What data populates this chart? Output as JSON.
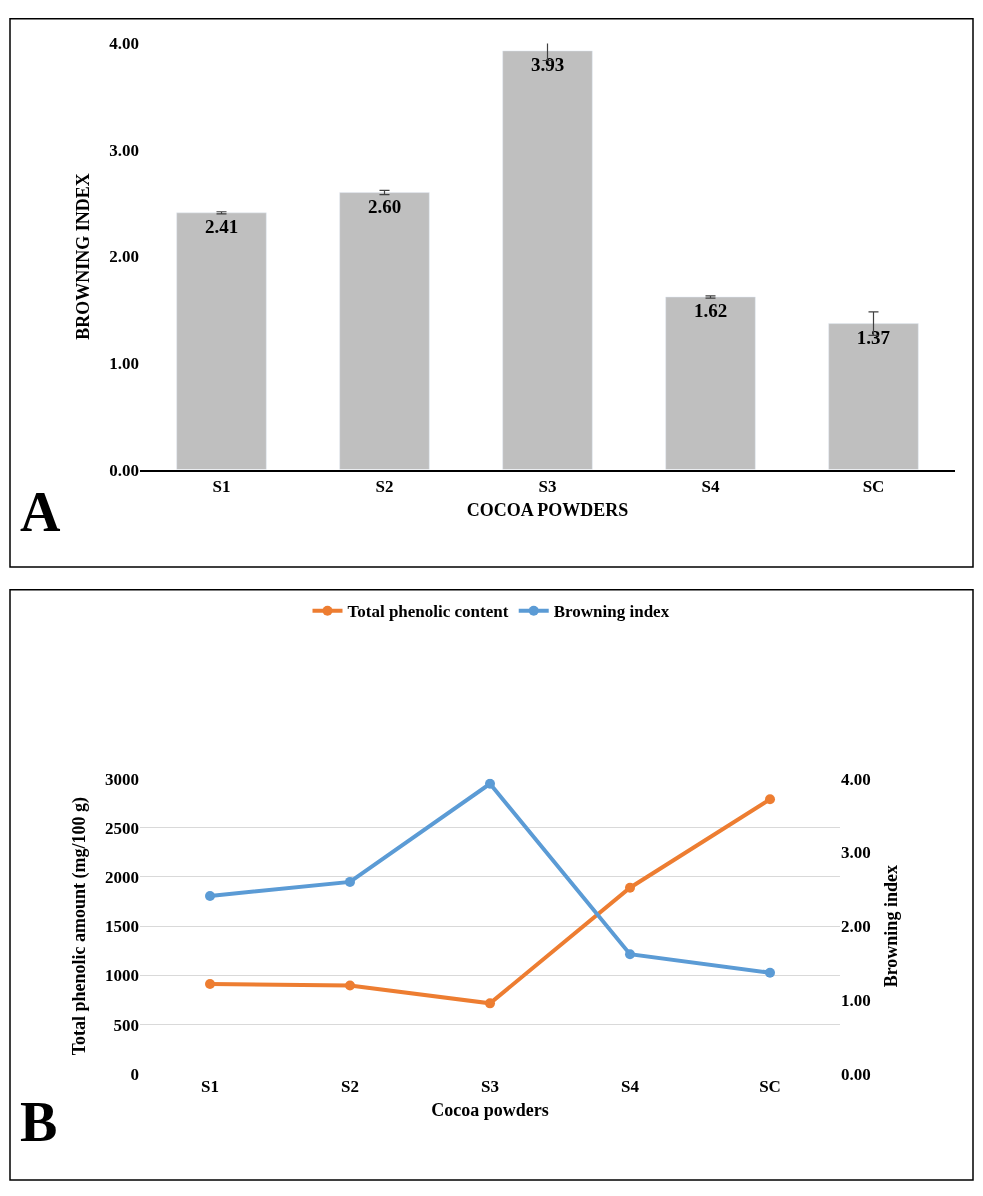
{
  "chart_data": [
    {
      "type": "bar",
      "categories": [
        "S1",
        "S2",
        "S3",
        "S4",
        "SC"
      ],
      "values": [
        2.41,
        2.6,
        3.93,
        1.62,
        1.37
      ],
      "errors": [
        0.01,
        0.02,
        0.09,
        0.01,
        0.11
      ],
      "color": "#bfbfbf",
      "xlabel": "COCOA POWDERS",
      "ylabel": "BROWNING INDEX",
      "ylim": [
        0,
        4
      ],
      "yticks": [
        {
          "value": 0,
          "label": "0.00"
        },
        {
          "value": 1,
          "label": "1.00"
        },
        {
          "value": 2,
          "label": "2.00"
        },
        {
          "value": 3,
          "label": "3.00"
        },
        {
          "value": 4,
          "label": "4.00"
        }
      ],
      "value_labels": [
        "2.41",
        "2.60",
        "3.93",
        "1.62",
        "1.37"
      ],
      "grid": false,
      "annotations": [
        "A"
      ]
    },
    {
      "type": "line",
      "categories": [
        "S1",
        "S2",
        "S3",
        "S4",
        "SC"
      ],
      "xlabel": "Cocoa powders",
      "ylabel": "Total phenolic amount (mg/100 g)",
      "y2label": "Browning index",
      "series": [
        {
          "name": "Total phenolic content",
          "color": "#ed7d31",
          "values": [
            913,
            898,
            716,
            1891,
            2789
          ]
        },
        {
          "name": "Browning index",
          "color": "#5b9bd5",
          "values": [
            2.41,
            2.6,
            3.93,
            1.62,
            1.37
          ],
          "axis": "y2"
        }
      ],
      "ylim": [
        0,
        3000
      ],
      "yticks": [
        0,
        500,
        1000,
        1500,
        2000,
        2500,
        3000
      ],
      "y2lim": [
        0,
        4
      ],
      "y2ticks": [
        {
          "value": 0,
          "label": "0.00"
        },
        {
          "value": 1,
          "label": "1.00"
        },
        {
          "value": 2,
          "label": "2.00"
        },
        {
          "value": 3,
          "label": "3.00"
        },
        {
          "value": 4,
          "label": "4.00"
        }
      ],
      "grid": "y",
      "legend": "top",
      "marker": "circle",
      "line_style": "solid",
      "annotations": [
        "B"
      ]
    }
  ]
}
